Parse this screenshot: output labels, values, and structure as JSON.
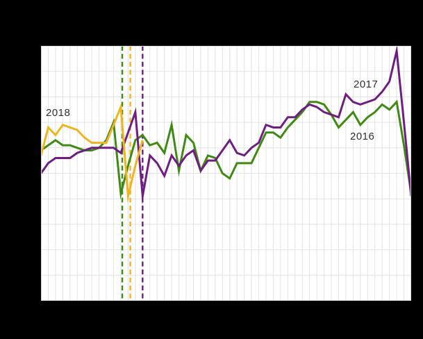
{
  "canvas": {
    "background": "#000000",
    "plot_background": "#ffffff",
    "grid_color": "#e2e2e2",
    "border_color": "#d8d8d8",
    "label_color": "#2f2f2f"
  },
  "chart_data": {
    "type": "line",
    "title": "",
    "x_range": [
      1,
      52
    ],
    "x_step": 1,
    "grid": true,
    "legend_position": "inline-labels",
    "y_axis": {
      "visible_labels": false,
      "gridline_units": [
        0,
        10
      ]
    },
    "series": [
      {
        "name": "2016",
        "color": "#3f8a12",
        "values": [
          5.9,
          6.1,
          6.3,
          6.1,
          6.1,
          6.0,
          5.9,
          5.9,
          6.0,
          6.3,
          7.0,
          4.2,
          5.3,
          6.3,
          6.5,
          6.1,
          6.2,
          5.8,
          6.9,
          5.1,
          6.5,
          6.2,
          5.1,
          5.7,
          5.6,
          5.0,
          4.8,
          5.4,
          5.4,
          5.4,
          6.0,
          6.6,
          6.6,
          6.4,
          6.8,
          7.1,
          7.4,
          7.8,
          7.8,
          7.7,
          7.3,
          6.8,
          7.1,
          7.4,
          6.9,
          7.2,
          7.4,
          7.7,
          7.5,
          7.8,
          6.1,
          4.2
        ]
      },
      {
        "name": "2017",
        "color": "#6f1d82",
        "values": [
          5.0,
          5.4,
          5.6,
          5.6,
          5.6,
          5.8,
          5.9,
          6.0,
          6.0,
          6.0,
          6.0,
          5.8,
          6.6,
          7.4,
          4.1,
          5.7,
          5.4,
          4.9,
          5.7,
          5.3,
          5.7,
          5.9,
          5.1,
          5.5,
          5.5,
          5.9,
          6.3,
          5.8,
          5.7,
          6.0,
          6.2,
          6.9,
          6.8,
          6.8,
          7.2,
          7.2,
          7.5,
          7.7,
          7.6,
          7.4,
          7.3,
          7.2,
          8.1,
          7.8,
          7.7,
          7.8,
          7.9,
          8.2,
          8.6,
          9.8,
          7.0,
          4.1
        ]
      },
      {
        "name": "2018",
        "color": "#f0b41e",
        "values": [
          5.7,
          6.8,
          6.5,
          6.9,
          6.8,
          6.7,
          6.4,
          6.2,
          6.2,
          6.2,
          6.9,
          7.6,
          4.1,
          5.3,
          6.3
        ]
      }
    ],
    "event_markers": [
      {
        "series": "2016",
        "x": 12.2,
        "style": "dashed",
        "color": "#3f8a12"
      },
      {
        "series": "2018",
        "x": 13.3,
        "style": "dashed",
        "color": "#f0b41e"
      },
      {
        "series": "2017",
        "x": 15.0,
        "style": "dashed",
        "color": "#6f1d82"
      }
    ],
    "annotations": [
      {
        "text": "2018"
      },
      {
        "text": "2017"
      },
      {
        "text": "2016"
      }
    ]
  }
}
